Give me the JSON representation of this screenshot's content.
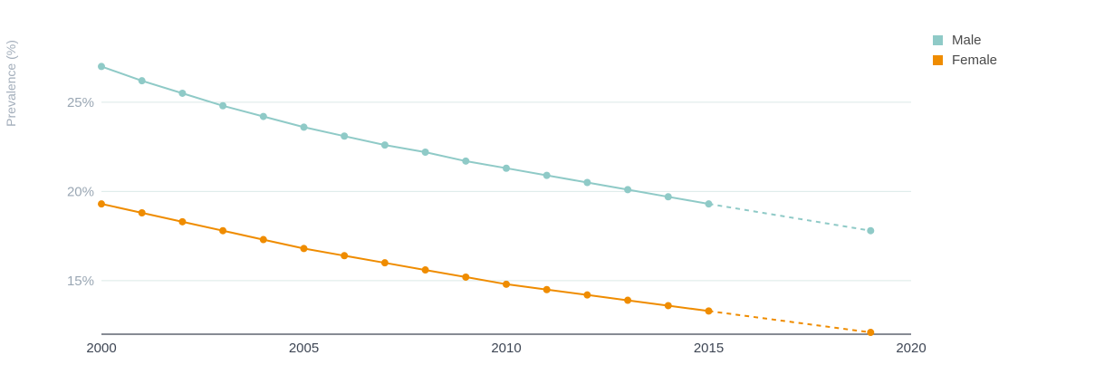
{
  "chart_data": {
    "type": "line",
    "ylabel": "Prevalence (%)",
    "xlabel": "",
    "xlim": [
      2000,
      2020
    ],
    "ylim": [
      12,
      29
    ],
    "x_ticks": [
      2000,
      2005,
      2010,
      2015,
      2020
    ],
    "y_ticks": [
      15,
      20,
      25
    ],
    "y_tick_labels": [
      "15%",
      "20%",
      "25%"
    ],
    "grid": true,
    "legend_position": "top-right",
    "series": [
      {
        "name": "Male",
        "color": "#8fcac7",
        "x": [
          2000,
          2001,
          2002,
          2003,
          2004,
          2005,
          2006,
          2007,
          2008,
          2009,
          2010,
          2011,
          2012,
          2013,
          2014,
          2015
        ],
        "y": [
          27.0,
          26.2,
          25.5,
          24.8,
          24.2,
          23.6,
          23.1,
          22.6,
          22.2,
          21.7,
          21.3,
          20.9,
          20.5,
          20.1,
          19.7,
          19.3
        ],
        "projection": {
          "x": [
            2015,
            2019
          ],
          "y": [
            19.3,
            17.8
          ]
        }
      },
      {
        "name": "Female",
        "color": "#ef8c00",
        "x": [
          2000,
          2001,
          2002,
          2003,
          2004,
          2005,
          2006,
          2007,
          2008,
          2009,
          2010,
          2011,
          2012,
          2013,
          2014,
          2015
        ],
        "y": [
          19.3,
          18.8,
          18.3,
          17.8,
          17.3,
          16.8,
          16.4,
          16.0,
          15.6,
          15.2,
          14.8,
          14.5,
          14.2,
          13.9,
          13.6,
          13.3
        ],
        "projection": {
          "x": [
            2015,
            2019
          ],
          "y": [
            13.3,
            12.1
          ]
        }
      }
    ]
  }
}
